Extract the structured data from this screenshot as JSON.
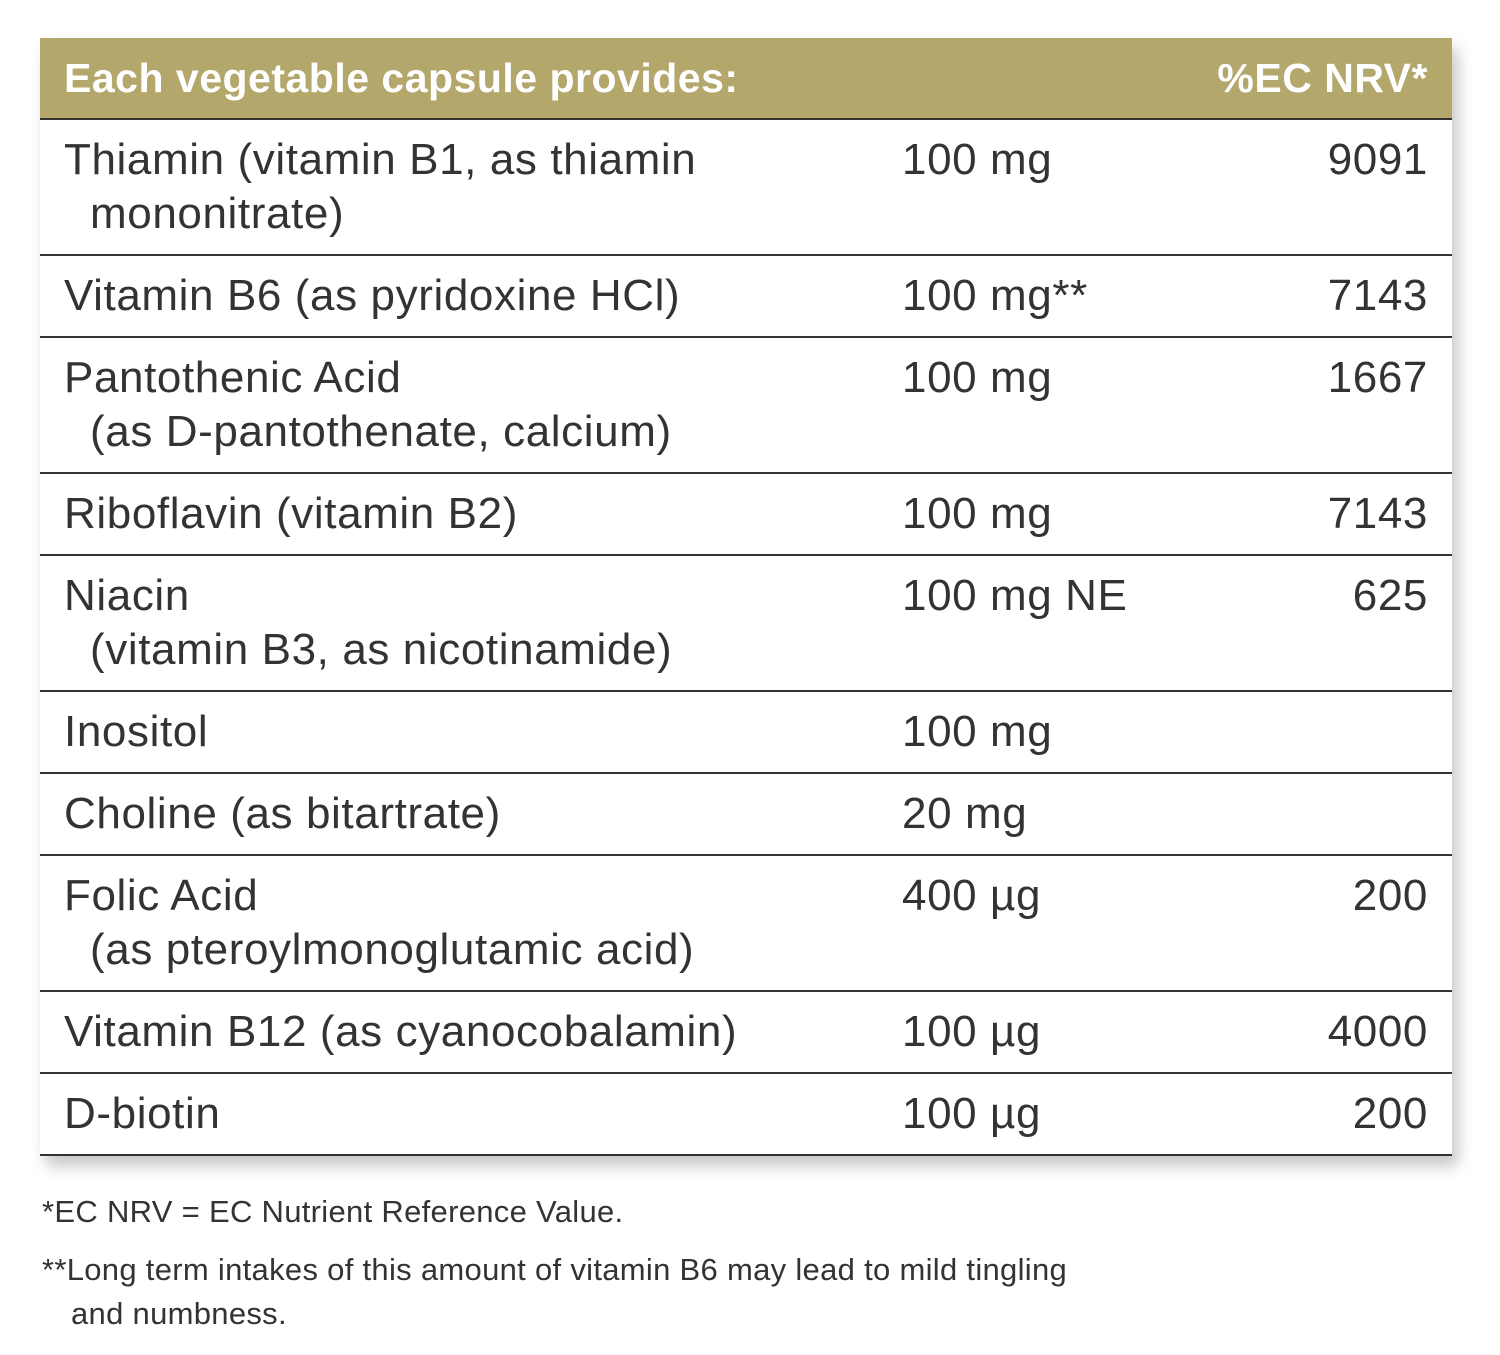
{
  "table": {
    "header": {
      "title": "Each vegetable capsule provides:",
      "nrv": "%EC NRV*"
    },
    "rows": [
      {
        "name": [
          "Thiamin (vitamin B1, as thiamin",
          "mononitrate)"
        ],
        "amount": "100 mg",
        "nrv": "9091"
      },
      {
        "name": [
          "Vitamin B6 (as pyridoxine HCl)"
        ],
        "amount": "100 mg**",
        "nrv": "7143"
      },
      {
        "name": [
          "Pantothenic Acid",
          "(as D-pantothenate, calcium)"
        ],
        "amount": "100 mg",
        "nrv": "1667"
      },
      {
        "name": [
          "Riboflavin (vitamin B2)"
        ],
        "amount": "100 mg",
        "nrv": "7143"
      },
      {
        "name": [
          "Niacin",
          "(vitamin B3, as nicotinamide)"
        ],
        "amount": "100 mg NE",
        "nrv": "625"
      },
      {
        "name": [
          "Inositol"
        ],
        "amount": "100 mg",
        "nrv": null
      },
      {
        "name": [
          "Choline (as bitartrate)"
        ],
        "amount": "20 mg",
        "nrv": null
      },
      {
        "name": [
          "Folic Acid",
          "(as pteroylmonoglutamic acid)"
        ],
        "amount": "400 µg",
        "nrv": "200"
      },
      {
        "name": [
          "Vitamin B12 (as cyanocobalamin)"
        ],
        "amount": "100 µg",
        "nrv": "4000"
      },
      {
        "name": [
          "D-biotin"
        ],
        "amount": "100 µg",
        "nrv": "200"
      }
    ]
  },
  "footnotes": [
    [
      "*EC NRV = EC Nutrient Reference Value."
    ],
    [
      "**Long term intakes of this amount of vitamin B6 may lead to mild tingling",
      "and numbness."
    ]
  ]
}
